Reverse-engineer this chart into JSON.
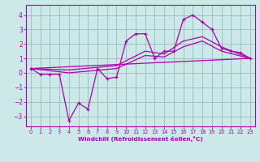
{
  "xlabel": "Windchill (Refroidissement éolien,°C)",
  "xlim": [
    -0.5,
    23.5
  ],
  "ylim": [
    -3.7,
    4.7
  ],
  "yticks": [
    -3,
    -2,
    -1,
    0,
    1,
    2,
    3,
    4
  ],
  "xticks": [
    0,
    1,
    2,
    3,
    4,
    5,
    6,
    7,
    8,
    9,
    10,
    11,
    12,
    13,
    14,
    15,
    16,
    17,
    18,
    19,
    20,
    21,
    22,
    23
  ],
  "bg_color": "#cde8e8",
  "line_color": "#aa00aa",
  "grid_color": "#99bbbb",
  "series1_x": [
    0,
    1,
    2,
    3,
    4,
    5,
    6,
    7,
    8,
    9,
    10,
    11,
    12,
    13,
    14,
    15,
    16,
    17,
    18,
    19,
    20,
    21,
    22,
    23
  ],
  "series1_y": [
    0.3,
    -0.1,
    -0.1,
    -0.1,
    -3.3,
    -2.1,
    -2.5,
    0.3,
    -0.4,
    -0.3,
    2.2,
    2.7,
    2.7,
    1.0,
    1.5,
    1.5,
    3.7,
    4.0,
    3.5,
    3.0,
    1.7,
    1.5,
    1.4,
    1.0
  ],
  "series2_x": [
    0,
    23
  ],
  "series2_y": [
    0.3,
    1.0
  ],
  "series3_x": [
    0,
    4,
    9,
    12,
    14,
    16,
    18,
    20,
    23
  ],
  "series3_y": [
    0.3,
    0.2,
    0.5,
    1.5,
    1.3,
    2.2,
    2.5,
    1.8,
    1.0
  ],
  "series4_x": [
    0,
    4,
    9,
    12,
    14,
    16,
    18,
    20,
    23
  ],
  "series4_y": [
    0.3,
    0.0,
    0.3,
    1.2,
    1.1,
    1.8,
    2.2,
    1.5,
    1.0
  ]
}
